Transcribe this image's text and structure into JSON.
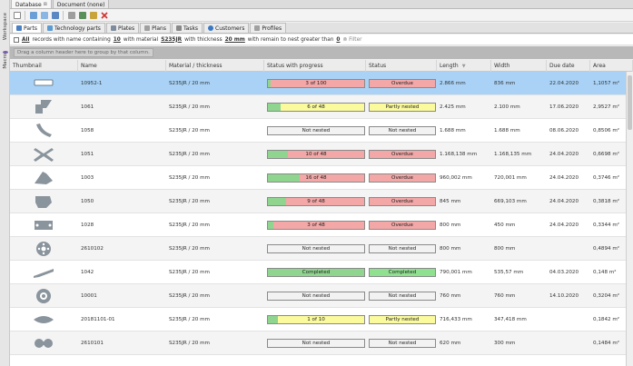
{
  "side_tabs": [
    "Workspace",
    "Macro"
  ],
  "doc_tabs": [
    {
      "label": "Database",
      "close": "⊠",
      "active": true
    },
    {
      "label": "Document (none)",
      "active": false
    }
  ],
  "toolbar_icons": [
    "new-icon",
    "copy-icon",
    "paste-icon",
    "layers-icon",
    "print-icon",
    "export-icon",
    "lock-icon",
    "delete-icon"
  ],
  "view_tabs": [
    {
      "label": "Parts",
      "active": true,
      "color": "#4a7fc1"
    },
    {
      "label": "Technology parts",
      "active": false,
      "color": "#5a9bd4"
    },
    {
      "label": "Plates",
      "active": false,
      "color": "#7d8c9c"
    },
    {
      "label": "Plans",
      "active": false,
      "color": "#a0a0a0"
    },
    {
      "label": "Tasks",
      "active": false,
      "color": "#888888"
    },
    {
      "label": "Customers",
      "active": false,
      "color": "#3b78c4"
    },
    {
      "label": "Profiles",
      "active": false,
      "color": "#a0a0a0"
    }
  ],
  "filter": {
    "all": "All",
    "t1": "records with name containing",
    "n1": "10",
    "t2": "with material",
    "mat": "S235JR",
    "t3": "with thickness",
    "thk": "20 mm",
    "t4": "with remain to nest greater than",
    "n2": "0",
    "filter_label": "Filter"
  },
  "group_hint": "Drag a column header here to group by that column.",
  "columns": [
    "Thumbnail",
    "Name",
    "Material / thickness",
    "Status with progress",
    "Status",
    "Length",
    "Width",
    "Due date",
    "Area"
  ],
  "colors": {
    "overdue": "#f3a7a7",
    "partly": "#fbfb9e",
    "completed": "#8fe08f",
    "progress_green": "#8fd58f",
    "not_nested": "#f2f2f2",
    "selected": "#a9d2f6"
  },
  "rows": [
    {
      "name": "10952-1",
      "material": "S235JR / 20 mm",
      "progress_text": "3 of 100",
      "progress": 0.03,
      "progress_bg": "#f3a7a7",
      "status": "Overdue",
      "status_bg": "#f3a7a7",
      "length": "2.866 mm",
      "width": "836 mm",
      "due": "22.04.2020",
      "area": "1,1057 m²",
      "selected": true
    },
    {
      "name": "1061",
      "material": "S235JR / 20 mm",
      "progress_text": "6 of 48",
      "progress": 0.125,
      "progress_bg": "#fbfb9e",
      "status": "Partly nested",
      "status_bg": "#fbfb9e",
      "length": "2.425 mm",
      "width": "2.100 mm",
      "due": "17.06.2020",
      "area": "2,9527 m²",
      "selected": false
    },
    {
      "name": "1058",
      "material": "S235JR / 20 mm",
      "progress_text": "Not nested",
      "progress": 0,
      "progress_bg": "#f2f2f2",
      "status": "Not nested",
      "status_bg": "#f2f2f2",
      "length": "1.688 mm",
      "width": "1.688 mm",
      "due": "08.06.2020",
      "area": "0,8506 m²",
      "selected": false
    },
    {
      "name": "1051",
      "material": "S235JR / 20 mm",
      "progress_text": "10 of 48",
      "progress": 0.21,
      "progress_bg": "#f3a7a7",
      "status": "Overdue",
      "status_bg": "#f3a7a7",
      "length": "1.168,138 mm",
      "width": "1.168,135 mm",
      "due": "24.04.2020",
      "area": "0,6698 m²",
      "selected": false
    },
    {
      "name": "1003",
      "material": "S235JR / 20 mm",
      "progress_text": "16 of 48",
      "progress": 0.33,
      "progress_bg": "#f3a7a7",
      "status": "Overdue",
      "status_bg": "#f3a7a7",
      "length": "960,002 mm",
      "width": "720,001 mm",
      "due": "24.04.2020",
      "area": "0,3746 m²",
      "selected": false
    },
    {
      "name": "1050",
      "material": "S235JR / 20 mm",
      "progress_text": "9 of 48",
      "progress": 0.19,
      "progress_bg": "#f3a7a7",
      "status": "Overdue",
      "status_bg": "#f3a7a7",
      "length": "845 mm",
      "width": "669,103 mm",
      "due": "24.04.2020",
      "area": "0,3818 m²",
      "selected": false
    },
    {
      "name": "1028",
      "material": "S235JR / 20 mm",
      "progress_text": "3 of 48",
      "progress": 0.06,
      "progress_bg": "#f3a7a7",
      "status": "Overdue",
      "status_bg": "#f3a7a7",
      "length": "800 mm",
      "width": "450 mm",
      "due": "24.04.2020",
      "area": "0,3344 m²",
      "selected": false
    },
    {
      "name": "2610102",
      "material": "S235JR / 20 mm",
      "progress_text": "Not nested",
      "progress": 0,
      "progress_bg": "#f2f2f2",
      "status": "Not nested",
      "status_bg": "#f2f2f2",
      "length": "800 mm",
      "width": "800 mm",
      "due": "",
      "area": "0,4894 m²",
      "selected": false
    },
    {
      "name": "1042",
      "material": "S235JR / 20 mm",
      "progress_text": "Completed",
      "progress": 1,
      "progress_bg": "#8fe08f",
      "status": "Completed",
      "status_bg": "#8fe08f",
      "length": "790,001 mm",
      "width": "535,57 mm",
      "due": "04.03.2020",
      "area": "0,148 m²",
      "selected": false
    },
    {
      "name": "10001",
      "material": "S235JR / 20 mm",
      "progress_text": "Not nested",
      "progress": 0,
      "progress_bg": "#f2f2f2",
      "status": "Not nested",
      "status_bg": "#f2f2f2",
      "length": "760 mm",
      "width": "760 mm",
      "due": "14.10.2020",
      "area": "0,3204 m²",
      "selected": false
    },
    {
      "name": "20181101-01",
      "material": "S235JR / 20 mm",
      "progress_text": "1 of 10",
      "progress": 0.1,
      "progress_bg": "#fbfb9e",
      "status": "Partly nested",
      "status_bg": "#fbfb9e",
      "length": "716,433 mm",
      "width": "347,418 mm",
      "due": "",
      "area": "0,1842 m²",
      "selected": false
    },
    {
      "name": "2610101",
      "material": "S235JR / 20 mm",
      "progress_text": "Not nested",
      "progress": 0,
      "progress_bg": "#f2f2f2",
      "status": "Not nested",
      "status_bg": "#f2f2f2",
      "length": "620 mm",
      "width": "300 mm",
      "due": "",
      "area": "0,1484 m²",
      "selected": false
    }
  ]
}
